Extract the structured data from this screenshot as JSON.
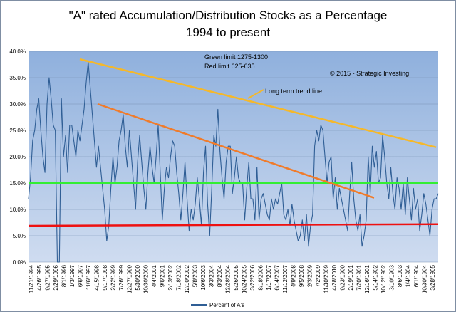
{
  "chart_data": {
    "type": "line",
    "title_line1": "\"A\" rated Accumulation/Distribution Stocks as a Percentage",
    "title_line2": "1994 to present",
    "yticks": [
      "0.0%",
      "5.0%",
      "10.0%",
      "15.0%",
      "20.0%",
      "25.0%",
      "30.0%",
      "35.0%",
      "40.0%"
    ],
    "ylim": [
      0,
      40
    ],
    "xticks": [
      "11/21/1994",
      "4/26/1995",
      "9/27/1995",
      "2/29/1996",
      "8/1/1996",
      "1/3/1997",
      "6/6/1997",
      "11/6/1997",
      "4/15/1998",
      "9/17/1998",
      "2/22/1999",
      "7/26/1999",
      "12/27/1999",
      "5/30/2000",
      "10/30/2000",
      "4/4/2001",
      "9/6/2001",
      "2/13/2002",
      "7/18/2002",
      "12/10/2002",
      "5/8/2003",
      "10/6/2003",
      "3/3/2004",
      "8/3/2004",
      "12/28/2004",
      "5/26/2005",
      "10/24/2005",
      "3/22/2006",
      "8/18/2006",
      "1/17/2007",
      "6/14/2007",
      "11/12/2007",
      "4/9/2008",
      "9/5/2008",
      "2/3/2009",
      "7/2/2009",
      "11/30/2009",
      "4/28/2010",
      "9/23/1900",
      "2/19/1901",
      "7/20/1901",
      "12/16/1901",
      "5/14/1902",
      "10/12/1902",
      "3/10/1903",
      "8/6/1903",
      "1/4/1904",
      "6/1/1904",
      "10/30/1904",
      "3/28/1905"
    ],
    "series": [
      {
        "name": "Percent of A's",
        "color": "#2f5e95",
        "values": [
          12,
          16,
          23,
          25,
          29,
          31,
          25,
          20,
          17,
          30,
          35,
          31,
          26,
          25,
          0,
          0,
          31,
          20,
          24,
          17,
          26,
          26,
          23,
          20,
          25,
          23,
          26,
          29,
          34,
          38,
          33,
          28,
          23,
          18,
          22,
          18,
          14,
          10,
          4,
          7,
          14,
          20,
          15,
          18,
          23,
          25,
          28,
          22,
          18,
          25,
          20,
          15,
          10,
          19,
          24,
          19,
          14,
          10,
          17,
          22,
          18,
          15,
          20,
          26,
          17,
          8,
          14,
          18,
          16,
          20,
          23,
          22,
          17,
          13,
          8,
          13,
          19,
          12,
          6,
          10,
          8,
          11,
          16,
          12,
          7,
          17,
          22,
          11,
          5,
          14,
          24,
          22,
          29,
          21,
          16,
          12,
          19,
          22,
          22,
          13,
          16,
          20,
          16,
          15,
          15,
          8,
          14,
          19,
          12,
          12,
          8,
          18,
          8,
          12,
          13,
          11,
          9,
          8,
          12,
          10,
          12,
          11,
          13,
          15,
          9,
          8,
          10,
          7,
          11,
          8,
          6,
          4,
          5,
          8,
          4,
          9,
          3,
          7,
          9,
          22,
          25,
          23,
          26,
          25,
          20,
          15,
          19,
          20,
          12,
          16,
          10,
          14,
          12,
          10,
          8,
          6,
          13,
          19,
          12,
          8,
          6,
          9,
          3,
          5,
          8,
          20,
          13,
          22,
          18,
          21,
          15,
          16,
          24,
          20,
          15,
          12,
          18,
          13,
          10,
          16,
          14,
          10,
          15,
          9,
          16,
          12,
          8,
          14,
          10,
          12,
          6,
          9,
          13,
          11,
          8,
          5,
          10,
          12,
          12,
          13
        ]
      }
    ],
    "annotations": {
      "green_limit": "Green limit 1275-1300",
      "red_limit": "Red limit 625-635",
      "copyright": "© 2015 - Strategic Investing",
      "trend_label": "Long term trend line"
    },
    "reference_lines": [
      {
        "name": "green-level-line",
        "color": "#33ee33",
        "from_value": 15,
        "to_value": 15
      },
      {
        "name": "red-level-line",
        "color": "#ee1111",
        "from_value": 6.9,
        "to_value": 7.2
      },
      {
        "name": "long-term-trend-line",
        "color": "#f5b82a",
        "from_value": 38.5,
        "to_value": 21.8
      },
      {
        "name": "orange-trend-line",
        "color": "#f07b2a",
        "from_value": 30,
        "to_value": 12.2
      }
    ],
    "plot_background": "#a3bfe5",
    "grid": true,
    "legend_position": "bottom"
  }
}
